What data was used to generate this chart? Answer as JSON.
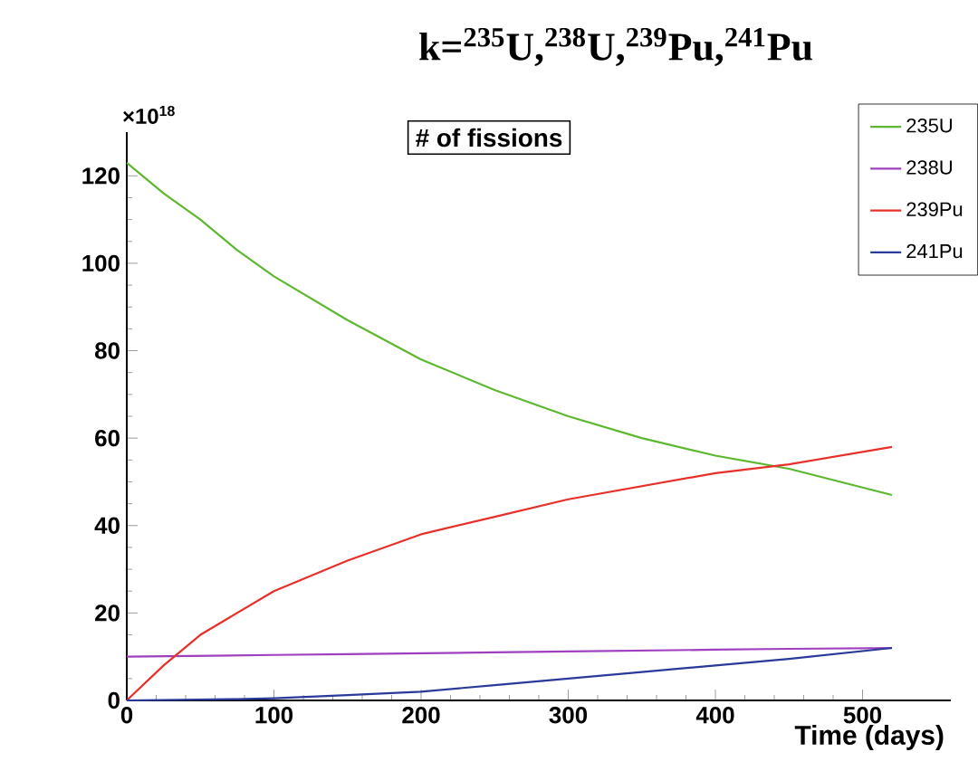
{
  "chart_data": {
    "type": "line",
    "title": "k=$^{235}$U,$^{238}$U,$^{239}$Pu,$^{241}$Pu",
    "subtitle": "# of fissions",
    "xlabel": "Time (days)",
    "annotations": [
      "×10$^{18}$"
    ],
    "x": [
      0,
      25,
      50,
      75,
      100,
      150,
      200,
      250,
      300,
      350,
      400,
      450,
      520
    ],
    "series": [
      {
        "name": "235U",
        "color": "#5cb82e",
        "values": [
          123,
          116,
          110,
          103,
          97,
          87,
          78,
          71,
          65,
          60,
          56,
          53,
          47
        ]
      },
      {
        "name": "238U",
        "color": "#a040c0",
        "values": [
          10,
          10.1,
          10.2,
          10.3,
          10.4,
          10.6,
          10.8,
          11,
          11.2,
          11.4,
          11.6,
          11.8,
          12
        ]
      },
      {
        "name": "239Pu",
        "color": "#e8302a",
        "values": [
          0,
          8,
          15,
          20,
          25,
          32,
          38,
          42,
          46,
          49,
          52,
          54,
          58
        ]
      },
      {
        "name": "241Pu",
        "color": "#2a3a9a",
        "values": [
          0,
          0.1,
          0.2,
          0.3,
          0.5,
          1.2,
          2,
          3.5,
          5,
          6.5,
          8,
          9.5,
          12
        ]
      }
    ],
    "xlim": [
      0,
      560
    ],
    "ylim": [
      0,
      130
    ],
    "xticks": [
      0,
      100,
      200,
      300,
      400,
      500
    ],
    "yticks": [
      0,
      20,
      40,
      60,
      80,
      100,
      120
    ],
    "grid": false,
    "legend": "top right",
    "marker": "none",
    "line_style": "solid"
  }
}
